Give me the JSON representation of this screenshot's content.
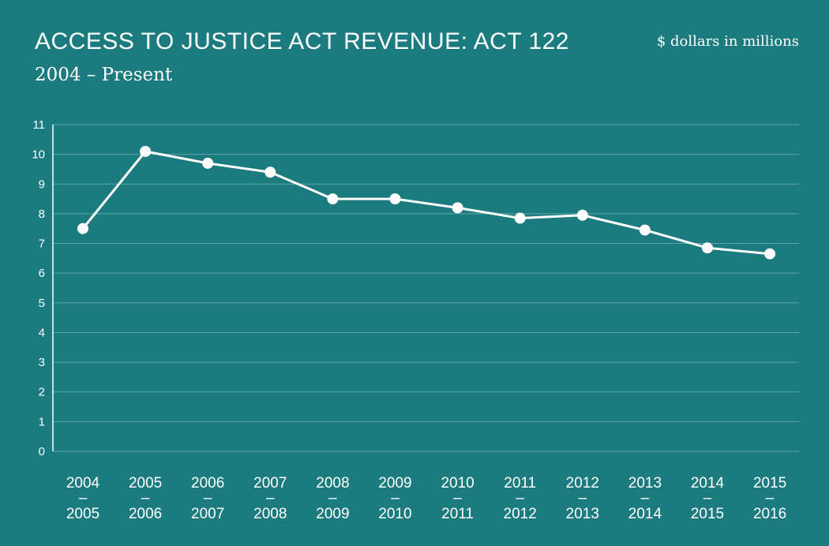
{
  "title": "ACCESS TO JUSTICE ACT REVENUE: ACT 122",
  "subtitle": "2004 – Present",
  "unit_note": "$ dollars in millions",
  "colors": {
    "background": "#1b7b7e",
    "line": "#ffffff",
    "grid": "#5fa6a8"
  },
  "chart_data": {
    "type": "line",
    "title": "ACCESS TO JUSTICE ACT REVENUE: ACT 122",
    "subtitle": "2004 – Present",
    "categories": [
      [
        "2004",
        "–",
        "2005"
      ],
      [
        "2005",
        "–",
        "2006"
      ],
      [
        "2006",
        "–",
        "2007"
      ],
      [
        "2007",
        "–",
        "2008"
      ],
      [
        "2008",
        "–",
        "2009"
      ],
      [
        "2009",
        "–",
        "2010"
      ],
      [
        "2010",
        "–",
        "2011"
      ],
      [
        "2011",
        "–",
        "2012"
      ],
      [
        "2012",
        "–",
        "2013"
      ],
      [
        "2013",
        "–",
        "2014"
      ],
      [
        "2014",
        "–",
        "2015"
      ],
      [
        "2015",
        "–",
        "2016"
      ]
    ],
    "values": [
      7.5,
      10.1,
      9.7,
      9.4,
      8.5,
      8.5,
      8.2,
      7.85,
      7.95,
      7.45,
      6.85,
      6.65
    ],
    "ylim": [
      0,
      11
    ],
    "yticks": [
      0,
      1,
      2,
      3,
      4,
      5,
      6,
      7,
      8,
      9,
      10,
      11
    ],
    "grid": true,
    "legend": "none"
  }
}
